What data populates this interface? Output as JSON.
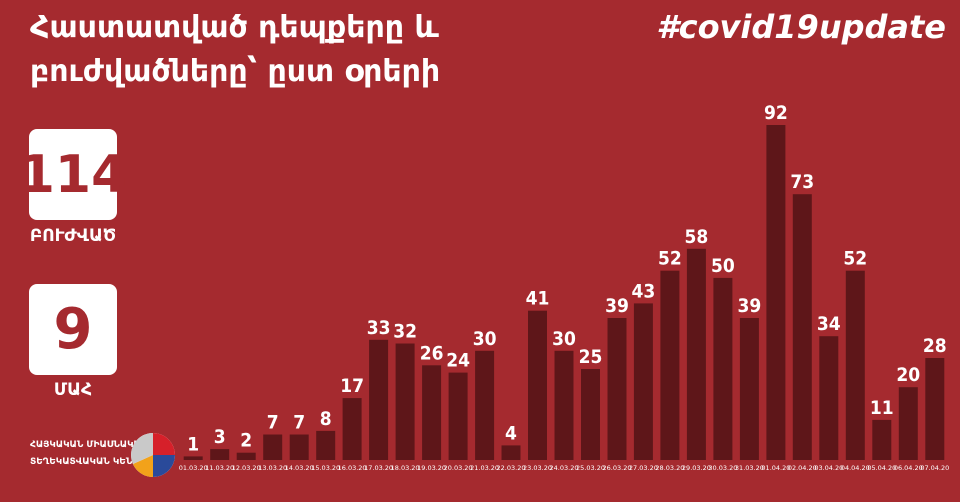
{
  "title_line1": "Հաստատված դեպքերը և",
  "title_line2": "բուժվածները՝ ըստ օրերի",
  "hashtag": "#covid19update",
  "recovered": {
    "value": "114",
    "label": "ԲՈՒԺՎԱԾ"
  },
  "deaths": {
    "value": "9",
    "label": "ՄԱՀ"
  },
  "logo": {
    "line1": "ՀԱՅԿԱԿԱՆ ՄԻԱՍՆԱԿԱՆ",
    "line2": "ՏԵՂԵԿԱՏՎԱԿԱՆ ԿԵՆՏՐՈՆ"
  },
  "colors": {
    "background": "#a52a2f",
    "bar": "#5e1619",
    "text": "#ffffff"
  },
  "chart_data": {
    "type": "bar",
    "categories": [
      "01.03.20",
      "11.03.20",
      "12.03.20",
      "13.03.20",
      "14.03.20",
      "15.03.20",
      "16.03.20",
      "17.03.20",
      "18.03.20",
      "19.03.20",
      "20.03.20",
      "21.03.20",
      "22.03.20",
      "23.03.20",
      "24.03.20",
      "25.03.20",
      "26.03.20",
      "27.03.20",
      "28.03.20",
      "29.03.20",
      "30.03.20",
      "31.03.20",
      "01.04.20",
      "02.04.20",
      "03.04.20",
      "04.04.20",
      "05.04.20",
      "06.04.20",
      "07.04.20"
    ],
    "values": [
      1,
      3,
      2,
      7,
      7,
      8,
      17,
      33,
      32,
      26,
      24,
      30,
      4,
      41,
      30,
      25,
      39,
      43,
      52,
      58,
      50,
      39,
      92,
      73,
      34,
      52,
      11,
      20,
      28
    ],
    "ylim": [
      0,
      92
    ]
  }
}
